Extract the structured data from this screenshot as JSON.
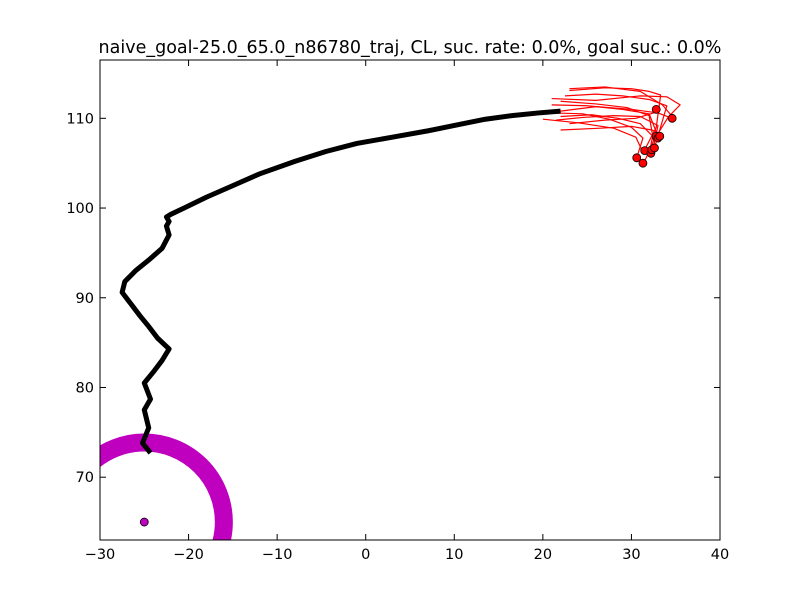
{
  "chart_data": {
    "type": "scatter",
    "title": "naive_goal-25.0_65.0_n86780_traj, CL, suc. rate: 0.0%, goal suc.: 0.0%",
    "xlabel": "",
    "ylabel": "",
    "xlim": [
      -30,
      40
    ],
    "ylim": [
      63,
      116.5
    ],
    "grid": false,
    "x_ticks": [
      -30,
      -20,
      -10,
      0,
      10,
      20,
      30,
      40
    ],
    "x_tick_labels": [
      "−30",
      "−20",
      "−10",
      "0",
      "10",
      "20",
      "30",
      "40"
    ],
    "y_ticks": [
      70,
      80,
      90,
      100,
      110
    ],
    "y_tick_labels": [
      "70",
      "80",
      "90",
      "100",
      "110"
    ],
    "colors": {
      "main_trajectory": "#000000",
      "rollouts": "#ff0000",
      "endpoints": "#ff0000",
      "goal": "#bf00bf"
    },
    "series": [
      {
        "kind": "main-trajectory",
        "x": [
          -24.3,
          -25.2,
          -24.5,
          -25.0,
          -24.3,
          -25.0,
          -24.0,
          -23.0,
          -22.2,
          -23.5,
          -24.5,
          -25.5,
          -26.5,
          -27.5,
          -27.2,
          -26.0,
          -24.5,
          -23.0,
          -22.2,
          -22.5,
          -22.2,
          -22.5,
          -22.0,
          -20.5,
          -18.0,
          -15.0,
          -12.0,
          -8.0,
          -4.5,
          -1.0,
          3.0,
          7.0,
          10.5,
          13.5,
          16.5,
          19.5,
          22.0
        ],
        "y": [
          72.7,
          73.8,
          75.5,
          77.5,
          78.7,
          80.5,
          81.7,
          83.0,
          84.3,
          85.5,
          86.8,
          88.0,
          89.3,
          90.6,
          91.8,
          93.0,
          94.2,
          95.5,
          97.0,
          98.0,
          98.5,
          99.0,
          99.3,
          100.0,
          101.2,
          102.5,
          103.8,
          105.2,
          106.3,
          107.2,
          107.9,
          108.6,
          109.3,
          109.9,
          110.3,
          110.6,
          110.8
        ]
      },
      {
        "kind": "rollout",
        "x": [
          22.0,
          26.0,
          30.0,
          33.0,
          34.6
        ],
        "y": [
          110.8,
          111.3,
          111.0,
          110.6,
          110.0
        ]
      },
      {
        "kind": "rollout",
        "x": [
          21.0,
          25.0,
          29.0,
          32.0,
          33.0
        ],
        "y": [
          111.5,
          111.4,
          111.0,
          110.5,
          108.0
        ]
      },
      {
        "kind": "rollout",
        "x": [
          21.5,
          24.5,
          28.0,
          31.0,
          33.0,
          32.3
        ],
        "y": [
          109.8,
          110.1,
          110.3,
          110.2,
          109.2,
          106.0
        ]
      },
      {
        "kind": "rollout",
        "x": [
          21.0,
          26.0,
          31.0,
          34.0,
          35.5,
          34.2,
          32.8
        ],
        "y": [
          112.2,
          112.0,
          112.5,
          112.4,
          111.5,
          110.2,
          108.0
        ]
      },
      {
        "kind": "rollout",
        "x": [
          23.0,
          27.0,
          30.0,
          32.0,
          33.3,
          32.8,
          31.5
        ],
        "y": [
          113.1,
          113.4,
          113.3,
          113.0,
          112.6,
          109.0,
          106.5
        ]
      },
      {
        "kind": "rollout",
        "x": [
          22.0,
          25.5,
          28.5,
          31.0,
          32.4,
          32.0
        ],
        "y": [
          110.2,
          110.4,
          110.0,
          109.4,
          108.0,
          106.1
        ]
      },
      {
        "kind": "rollout",
        "x": [
          22.5,
          26.0,
          29.0,
          32.0,
          34.0,
          32.6
        ],
        "y": [
          112.5,
          112.7,
          112.5,
          112.1,
          111.4,
          106.7
        ]
      },
      {
        "kind": "rollout",
        "x": [
          21.3,
          24.5,
          27.5,
          30.0,
          31.3,
          30.6
        ],
        "y": [
          110.6,
          110.5,
          109.9,
          109.0,
          107.8,
          105.6
        ]
      },
      {
        "kind": "rollout",
        "x": [
          22.0,
          26.0,
          29.5,
          32.0,
          32.5,
          31.4
        ],
        "y": [
          111.9,
          111.6,
          111.2,
          110.3,
          107.5,
          105.0
        ]
      },
      {
        "kind": "rollout",
        "x": [
          23.0,
          27.0,
          30.5,
          32.5,
          32.8
        ],
        "y": [
          109.4,
          109.8,
          110.0,
          110.6,
          111.0
        ]
      },
      {
        "kind": "rollout",
        "x": [
          22.0,
          26.5,
          30.0,
          32.3,
          33.2
        ],
        "y": [
          108.7,
          108.9,
          109.1,
          108.7,
          108.3
        ]
      },
      {
        "kind": "rollout",
        "x": [
          20.0,
          24.0,
          28.0,
          30.5,
          31.2
        ],
        "y": [
          109.9,
          109.5,
          108.9,
          107.9,
          106.4
        ]
      },
      {
        "kind": "rollout",
        "x": [
          23.0,
          27.0,
          31.0,
          33.5,
          34.6
        ],
        "y": [
          113.3,
          113.5,
          113.0,
          111.5,
          110.2
        ]
      },
      {
        "kind": "endpoints",
        "x": [
          30.6,
          31.3,
          31.5,
          32.2,
          32.3,
          32.6,
          32.8,
          33.0,
          33.2,
          32.8,
          34.6
        ],
        "y": [
          105.6,
          105.0,
          106.4,
          106.1,
          106.5,
          106.7,
          108.0,
          107.8,
          108.0,
          111.0,
          110.0
        ]
      }
    ],
    "goal": {
      "x": -25.0,
      "y": 65.0,
      "radius": 10.0
    }
  }
}
